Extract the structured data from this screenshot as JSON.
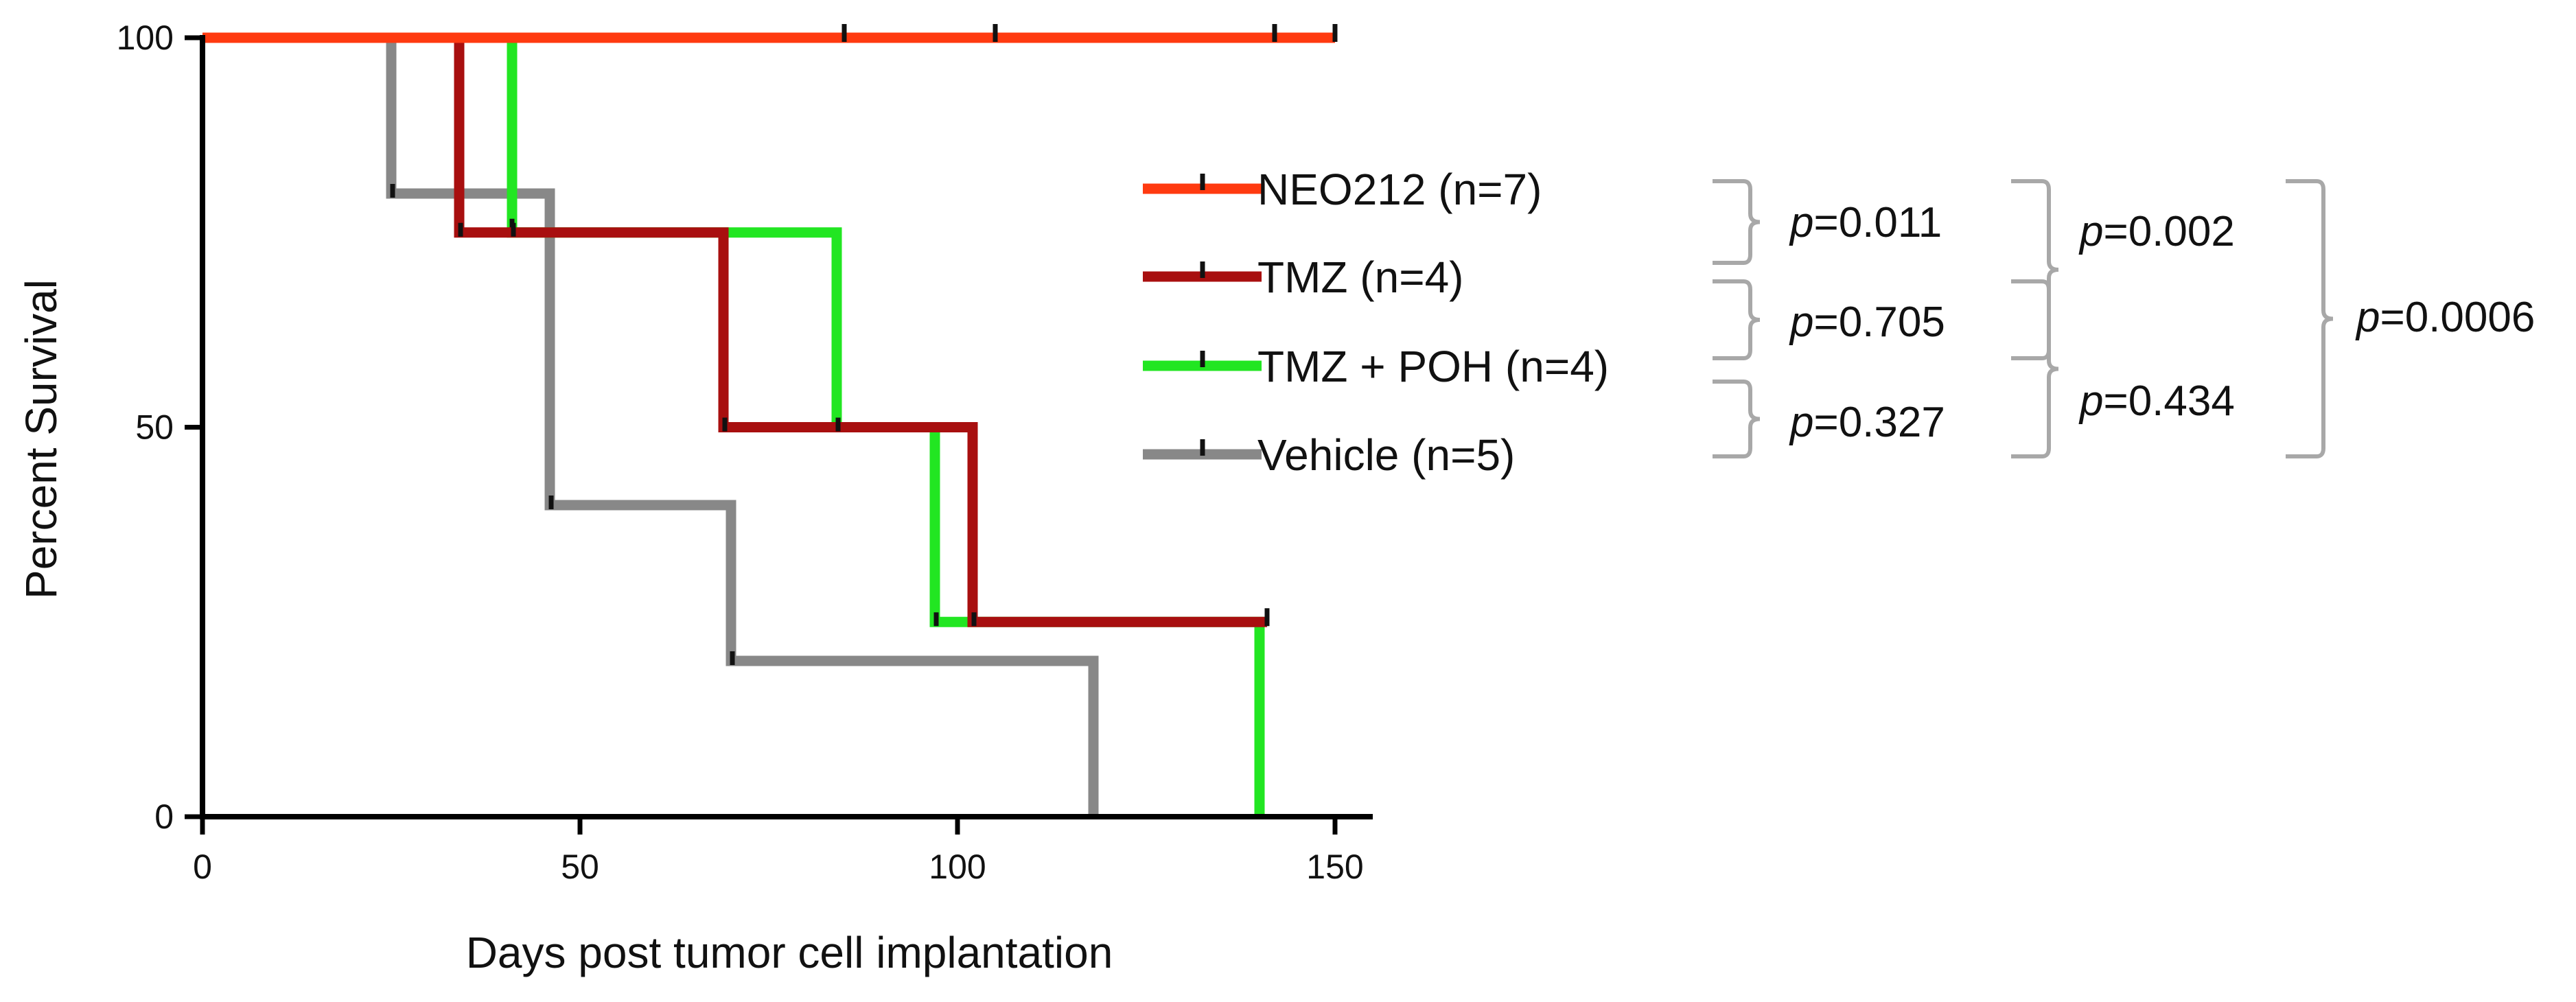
{
  "chart_data": {
    "type": "line",
    "subtype": "kaplan-meier",
    "title": "",
    "xlabel": "Days post tumor cell implantation",
    "ylabel": "Percent Survival",
    "xlim": [
      0,
      155
    ],
    "ylim": [
      0,
      100
    ],
    "xticks": [
      0,
      50,
      100,
      150
    ],
    "yticks": [
      0,
      50,
      100
    ],
    "legend_position": "right",
    "series": [
      {
        "name": "NEO212 (n=7)",
        "color": "#ff3a10",
        "steps": [
          [
            0,
            100
          ],
          [
            150,
            100
          ]
        ],
        "censored": [
          [
            85,
            100
          ],
          [
            105,
            100
          ],
          [
            142,
            100
          ],
          [
            150,
            100
          ]
        ]
      },
      {
        "name": "TMZ (n=4)",
        "color": "#a80f0f",
        "steps": [
          [
            0,
            100
          ],
          [
            34,
            75
          ],
          [
            69,
            50
          ],
          [
            102,
            25
          ],
          [
            141,
            25
          ]
        ],
        "censored": [
          [
            141,
            25
          ]
        ]
      },
      {
        "name": "TMZ + POH (n=4)",
        "color": "#22e622",
        "steps": [
          [
            0,
            100
          ],
          [
            41,
            75
          ],
          [
            84,
            50
          ],
          [
            97,
            25
          ],
          [
            140,
            0
          ]
        ],
        "censored": [
          [
            41,
            75
          ]
        ]
      },
      {
        "name": "Vehicle (n=5)",
        "color": "#888888",
        "steps": [
          [
            0,
            100
          ],
          [
            25,
            80
          ],
          [
            46,
            40
          ],
          [
            70,
            20
          ],
          [
            118,
            0
          ]
        ],
        "censored": []
      }
    ],
    "annotations": [
      {
        "label": "p",
        "value": "=0.011",
        "pair": "NEO212 vs TMZ"
      },
      {
        "label": "p",
        "value": "=0.705",
        "pair": "TMZ vs TMZ + POH"
      },
      {
        "label": "p",
        "value": "=0.327",
        "pair": "TMZ + POH vs Vehicle"
      },
      {
        "label": "p",
        "value": "=0.002",
        "pair": "NEO212 vs TMZ + POH"
      },
      {
        "label": "p",
        "value": "=0.434",
        "pair": "TMZ vs Vehicle"
      },
      {
        "label": "p",
        "value": "=0.0006",
        "pair": "NEO212 vs Vehicle"
      }
    ]
  }
}
